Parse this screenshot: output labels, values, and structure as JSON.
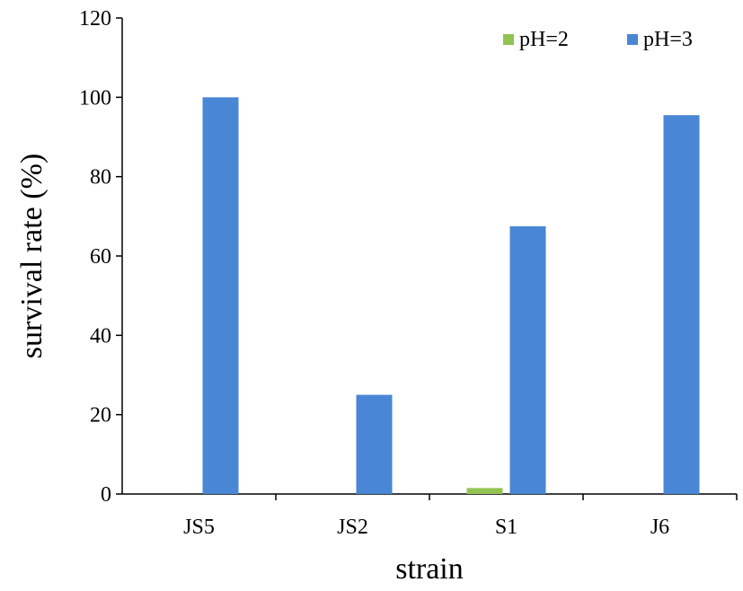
{
  "chart_data": {
    "type": "bar",
    "title": "",
    "xlabel": "strain",
    "ylabel": "survival rate (%)",
    "categories": [
      "JS5",
      "JS2",
      "S1",
      "J6"
    ],
    "series": [
      {
        "name": "pH=2",
        "color": "#92c353",
        "values": [
          0,
          0,
          1.5,
          0
        ]
      },
      {
        "name": "pH=3",
        "color": "#4a86d6",
        "values": [
          100,
          25,
          67.5,
          95.5
        ]
      }
    ],
    "ylim": [
      0,
      120
    ],
    "yticks": [
      0,
      20,
      40,
      60,
      80,
      100,
      120
    ],
    "grid": false,
    "legend_position": "top-right"
  }
}
